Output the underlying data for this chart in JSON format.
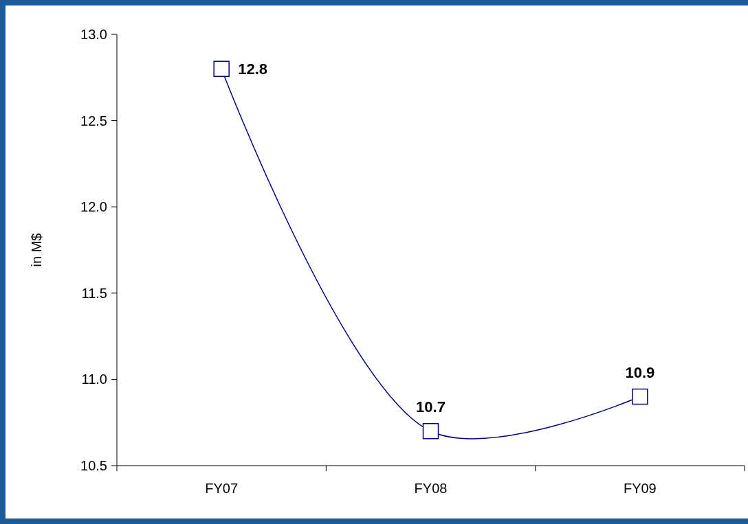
{
  "chart_data": {
    "type": "line",
    "ylabel": "in M$",
    "categories": [
      "FY07",
      "FY08",
      "FY09"
    ],
    "series": [
      {
        "color": "#000080",
        "values": [
          12.8,
          10.7,
          10.9
        ]
      }
    ],
    "ylim": [
      10.5,
      13.0
    ],
    "yticks": [
      {
        "value": 10.5,
        "label": "10.5"
      },
      {
        "value": 11,
        "label": "11.0"
      },
      {
        "value": 11.5,
        "label": "11.5"
      },
      {
        "value": 12,
        "label": "12.0"
      },
      {
        "value": 12.5,
        "label": "12.5"
      },
      {
        "value": 13,
        "label": "13.0"
      }
    ],
    "grid": false,
    "marker": "square",
    "line_style": "solid",
    "data_labels": true
  }
}
